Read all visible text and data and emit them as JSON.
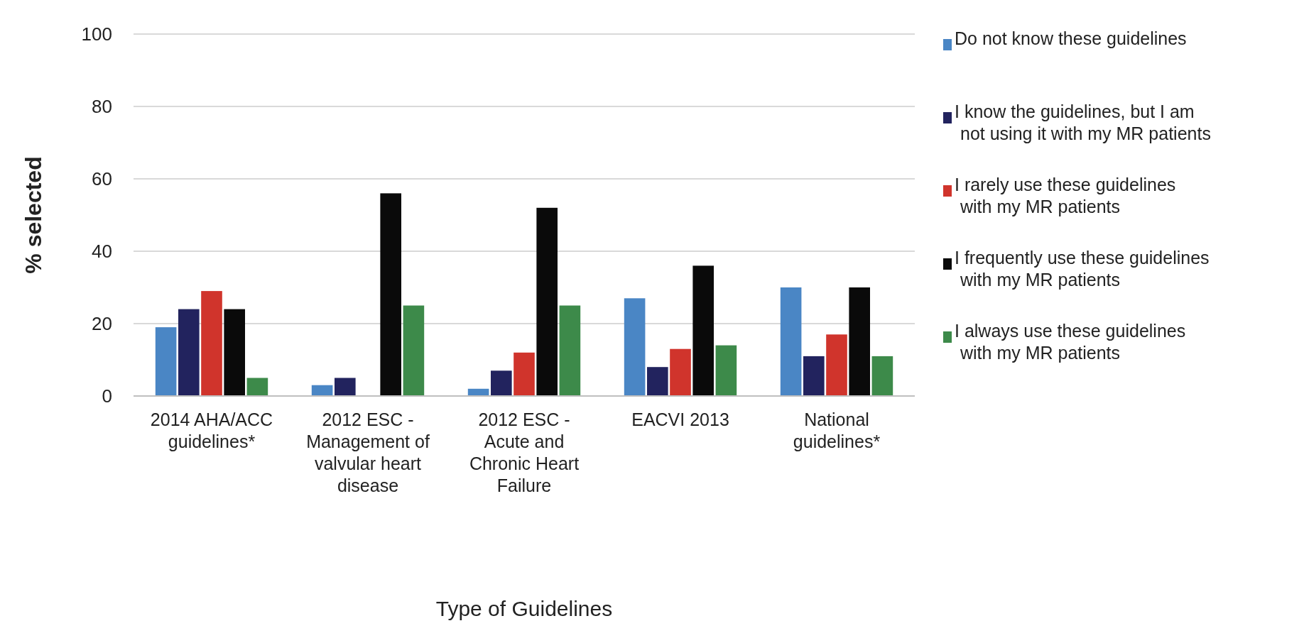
{
  "chart_data": {
    "type": "bar",
    "xlabel": "Type of Guidelines",
    "ylabel": "% selected",
    "categories": [
      "2014 AHA/ACC guidelines*",
      "2012 ESC - Management of valvular heart disease",
      "2012 ESC - Acute and Chronic Heart Failure",
      "EACVI 2013",
      "National guidelines*"
    ],
    "series": [
      {
        "name": "Do not know these guidelines",
        "color": "#4a86c5",
        "values": [
          19,
          3,
          2,
          27,
          30
        ]
      },
      {
        "name": "I know the guidelines, but I am not using it with my MR patients",
        "color": "#22235e",
        "values": [
          24,
          5,
          7,
          8,
          11
        ]
      },
      {
        "name": "I rarely use these guidelines with my MR patients",
        "color": "#d0342c",
        "values": [
          29,
          0,
          12,
          13,
          17
        ]
      },
      {
        "name": "I frequently use these guidelines with my MR patients",
        "color": "#0a0a0a",
        "values": [
          24,
          56,
          52,
          36,
          30
        ]
      },
      {
        "name": "I always use these guidelines with my MR patients",
        "color": "#3d8a4a",
        "values": [
          5,
          25,
          25,
          14,
          11
        ]
      }
    ],
    "ylim": [
      0,
      100
    ],
    "yticks": [
      0,
      20,
      40,
      60,
      80,
      100
    ],
    "grid": "y",
    "legend": "right"
  }
}
